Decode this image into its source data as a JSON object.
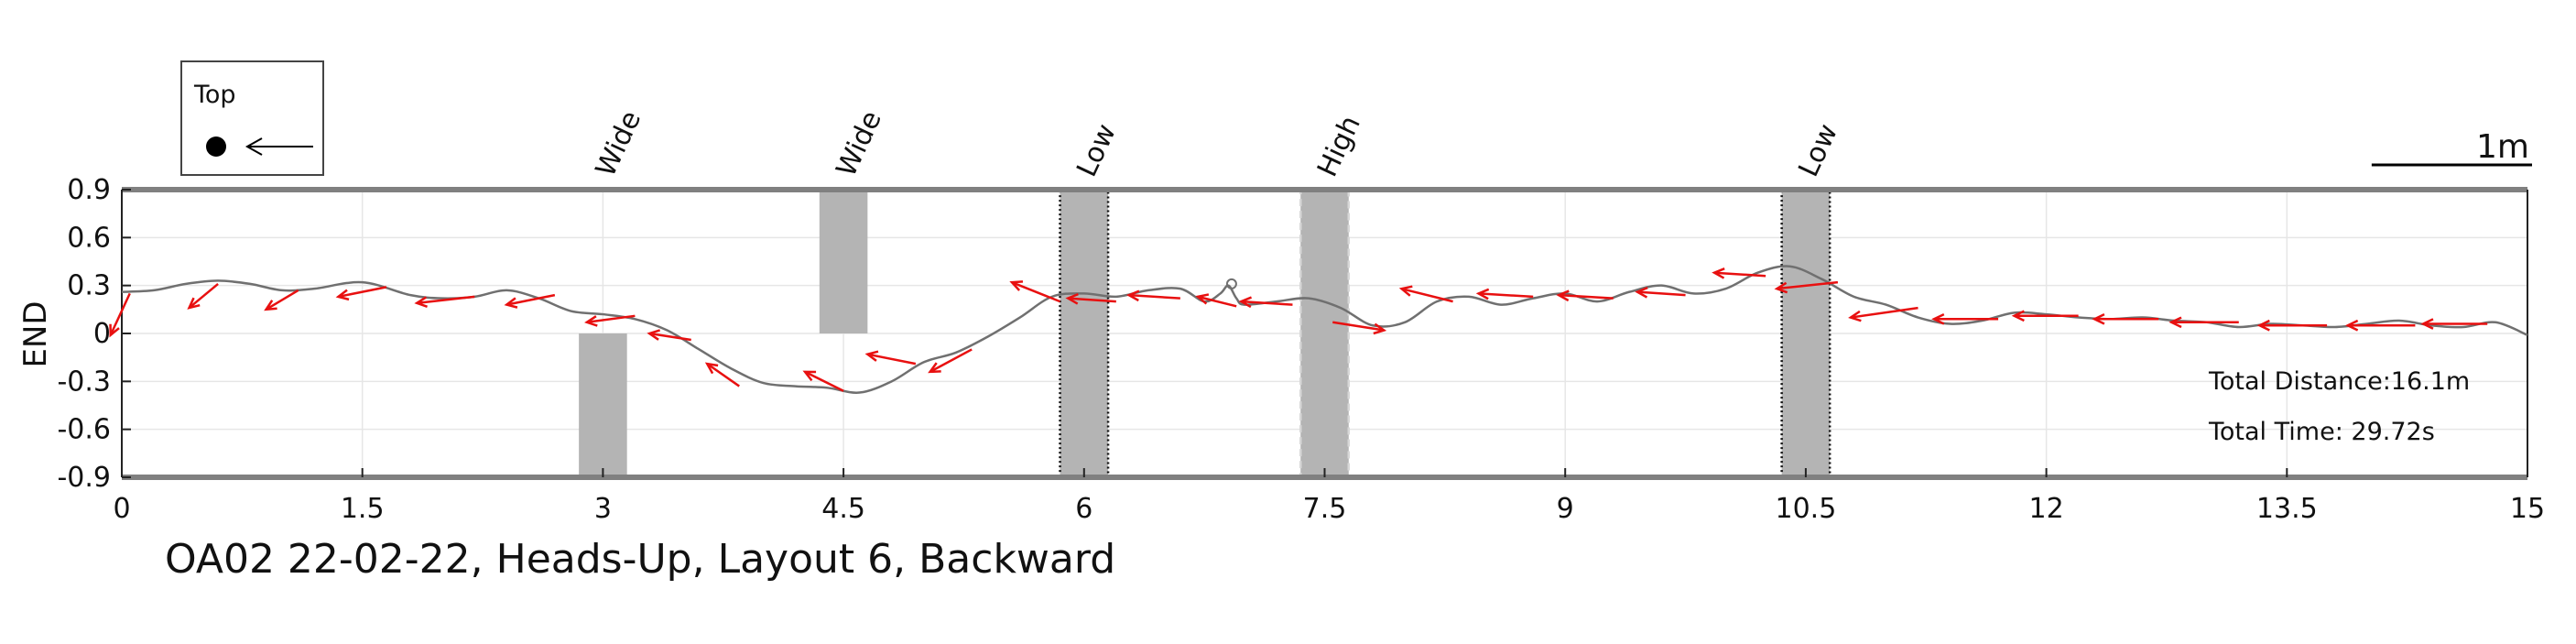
{
  "chart_data": {
    "type": "line",
    "title": "OA02 22-02-22, Heads-Up, Layout 6, Backward",
    "ylabel": "END",
    "xlim": [
      0,
      15
    ],
    "ylim": [
      -0.9,
      0.9
    ],
    "xticks": [
      0,
      1.5,
      3,
      4.5,
      6,
      7.5,
      9,
      10.5,
      12,
      13.5,
      15
    ],
    "xtick_labels": [
      "0",
      "1.5",
      "3",
      "4.5",
      "6",
      "7.5",
      "9",
      "10.5",
      "12",
      "13.5",
      "15"
    ],
    "yticks": [
      0.9,
      0.6,
      0.3,
      0,
      -0.3,
      -0.6,
      -0.9
    ],
    "ytick_labels": [
      "0.9",
      "0.6",
      "0.3",
      "0",
      "-0.3",
      "-0.6",
      "-0.9"
    ],
    "grid": true,
    "path_color": "#707070",
    "arrow_color": "#e81010",
    "obstacle_color": "#b4b4b4",
    "legend": {
      "label": "Top",
      "position": "top-left"
    },
    "scale_bar": {
      "label": "1m",
      "length_data_units": 1
    },
    "stats": [
      "Total Distance:16.1m",
      "Total Time: 29.72s"
    ],
    "obstacles": [
      {
        "label": "Wide",
        "x_center": 3.0,
        "width": 0.3,
        "y_from": -0.9,
        "y_to": 0,
        "style": "solid"
      },
      {
        "label": "Wide",
        "x_center": 4.5,
        "width": 0.3,
        "y_from": 0,
        "y_to": 0.9,
        "style": "solid"
      },
      {
        "label": "Low",
        "x_center": 6.0,
        "width": 0.3,
        "y_from": -0.9,
        "y_to": 0.9,
        "style": "dotted"
      },
      {
        "label": "High",
        "x_center": 7.5,
        "width": 0.3,
        "y_from": -0.9,
        "y_to": 0.9,
        "style": "dashed"
      },
      {
        "label": "Low",
        "x_center": 10.5,
        "width": 0.3,
        "y_from": -0.9,
        "y_to": 0.9,
        "style": "dotted"
      }
    ],
    "path": {
      "x": [
        0,
        0.2,
        0.4,
        0.6,
        0.8,
        1.0,
        1.2,
        1.5,
        1.8,
        2.0,
        2.2,
        2.4,
        2.6,
        2.8,
        3.0,
        3.2,
        3.4,
        3.6,
        3.8,
        4.0,
        4.2,
        4.4,
        4.6,
        4.8,
        5.0,
        5.2,
        5.4,
        5.6,
        5.8,
        6.0,
        6.2,
        6.4,
        6.6,
        6.75,
        6.85,
        6.9,
        6.95,
        7.0,
        7.2,
        7.4,
        7.6,
        7.8,
        8.0,
        8.2,
        8.4,
        8.6,
        8.8,
        9.0,
        9.2,
        9.4,
        9.6,
        9.8,
        10.0,
        10.2,
        10.4,
        10.6,
        10.8,
        11.0,
        11.2,
        11.4,
        11.6,
        11.8,
        12.0,
        12.2,
        12.4,
        12.6,
        12.8,
        13.0,
        13.2,
        13.4,
        13.6,
        13.8,
        14.0,
        14.2,
        14.4,
        14.6,
        14.8,
        15.0
      ],
      "y": [
        0.26,
        0.27,
        0.31,
        0.33,
        0.31,
        0.27,
        0.28,
        0.32,
        0.24,
        0.22,
        0.23,
        0.27,
        0.22,
        0.14,
        0.12,
        0.09,
        0.02,
        -0.1,
        -0.22,
        -0.31,
        -0.33,
        -0.34,
        -0.37,
        -0.3,
        -0.18,
        -0.12,
        -0.02,
        0.1,
        0.23,
        0.25,
        0.23,
        0.27,
        0.28,
        0.2,
        0.25,
        0.3,
        0.22,
        0.18,
        0.2,
        0.22,
        0.16,
        0.05,
        0.07,
        0.2,
        0.23,
        0.18,
        0.22,
        0.25,
        0.2,
        0.26,
        0.3,
        0.25,
        0.28,
        0.38,
        0.42,
        0.34,
        0.23,
        0.18,
        0.1,
        0.06,
        0.08,
        0.13,
        0.12,
        0.1,
        0.09,
        0.1,
        0.08,
        0.07,
        0.04,
        0.06,
        0.05,
        0.04,
        0.06,
        0.08,
        0.05,
        0.04,
        0.07,
        -0.01
      ]
    },
    "arrows": [
      {
        "x": 0.05,
        "y": 0.25,
        "dx": -0.12,
        "dy": -0.26
      },
      {
        "x": 0.6,
        "y": 0.31,
        "dx": -0.18,
        "dy": -0.15
      },
      {
        "x": 1.1,
        "y": 0.27,
        "dx": -0.2,
        "dy": -0.12
      },
      {
        "x": 1.65,
        "y": 0.29,
        "dx": -0.3,
        "dy": -0.06
      },
      {
        "x": 2.2,
        "y": 0.23,
        "dx": -0.36,
        "dy": -0.04
      },
      {
        "x": 2.7,
        "y": 0.24,
        "dx": -0.3,
        "dy": -0.06
      },
      {
        "x": 3.2,
        "y": 0.11,
        "dx": -0.3,
        "dy": -0.04
      },
      {
        "x": 3.55,
        "y": -0.04,
        "dx": -0.26,
        "dy": 0.04
      },
      {
        "x": 3.85,
        "y": -0.33,
        "dx": -0.2,
        "dy": 0.14
      },
      {
        "x": 4.5,
        "y": -0.36,
        "dx": -0.24,
        "dy": 0.12
      },
      {
        "x": 4.95,
        "y": -0.19,
        "dx": -0.3,
        "dy": 0.06
      },
      {
        "x": 5.3,
        "y": -0.1,
        "dx": -0.26,
        "dy": -0.14
      },
      {
        "x": 5.85,
        "y": 0.2,
        "dx": -0.3,
        "dy": 0.12
      },
      {
        "x": 6.2,
        "y": 0.2,
        "dx": -0.3,
        "dy": 0.02
      },
      {
        "x": 6.6,
        "y": 0.22,
        "dx": -0.32,
        "dy": 0.02
      },
      {
        "x": 6.95,
        "y": 0.17,
        "dx": -0.24,
        "dy": 0.06
      },
      {
        "x": 7.3,
        "y": 0.18,
        "dx": -0.32,
        "dy": 0.02
      },
      {
        "x": 7.55,
        "y": 0.07,
        "dx": 0.32,
        "dy": -0.05
      },
      {
        "x": 8.3,
        "y": 0.2,
        "dx": -0.32,
        "dy": 0.08
      },
      {
        "x": 8.8,
        "y": 0.23,
        "dx": -0.34,
        "dy": 0.02
      },
      {
        "x": 9.3,
        "y": 0.22,
        "dx": -0.34,
        "dy": 0.02
      },
      {
        "x": 9.75,
        "y": 0.24,
        "dx": -0.3,
        "dy": 0.02
      },
      {
        "x": 10.25,
        "y": 0.36,
        "dx": -0.32,
        "dy": 0.02
      },
      {
        "x": 10.7,
        "y": 0.32,
        "dx": -0.38,
        "dy": -0.04
      },
      {
        "x": 11.2,
        "y": 0.16,
        "dx": -0.42,
        "dy": -0.06
      },
      {
        "x": 11.7,
        "y": 0.09,
        "dx": -0.4,
        "dy": 0.0
      },
      {
        "x": 12.2,
        "y": 0.11,
        "dx": -0.4,
        "dy": 0.0
      },
      {
        "x": 12.7,
        "y": 0.09,
        "dx": -0.4,
        "dy": 0.0
      },
      {
        "x": 13.2,
        "y": 0.07,
        "dx": -0.42,
        "dy": 0.0
      },
      {
        "x": 13.75,
        "y": 0.05,
        "dx": -0.42,
        "dy": 0.0
      },
      {
        "x": 14.3,
        "y": 0.05,
        "dx": -0.42,
        "dy": 0.0
      },
      {
        "x": 14.75,
        "y": 0.06,
        "dx": -0.4,
        "dy": 0.0
      }
    ]
  }
}
